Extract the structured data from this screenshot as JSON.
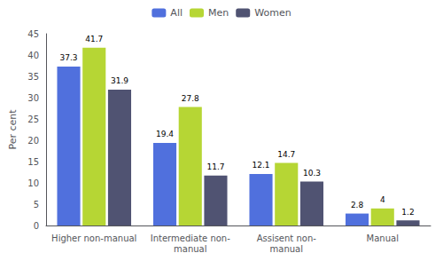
{
  "chart_data": {
    "type": "bar",
    "ylabel": "Per cent",
    "categories": [
      "Higher non-manual",
      "Intermediate non-\nmanual",
      "Assisent non-\nmanual",
      "Manual"
    ],
    "series": [
      {
        "name": "All",
        "values": [
          37.3,
          19.4,
          12.1,
          2.8
        ]
      },
      {
        "name": "Men",
        "values": [
          41.7,
          27.8,
          14.7,
          4
        ]
      },
      {
        "name": "Women",
        "values": [
          31.9,
          11.7,
          10.3,
          1.2
        ]
      }
    ],
    "ylim": [
      0,
      45
    ],
    "yticks": [
      0,
      5,
      10,
      15,
      20,
      25,
      30,
      35,
      40,
      45
    ],
    "grid": false,
    "legend": "top",
    "data_labels": true
  }
}
